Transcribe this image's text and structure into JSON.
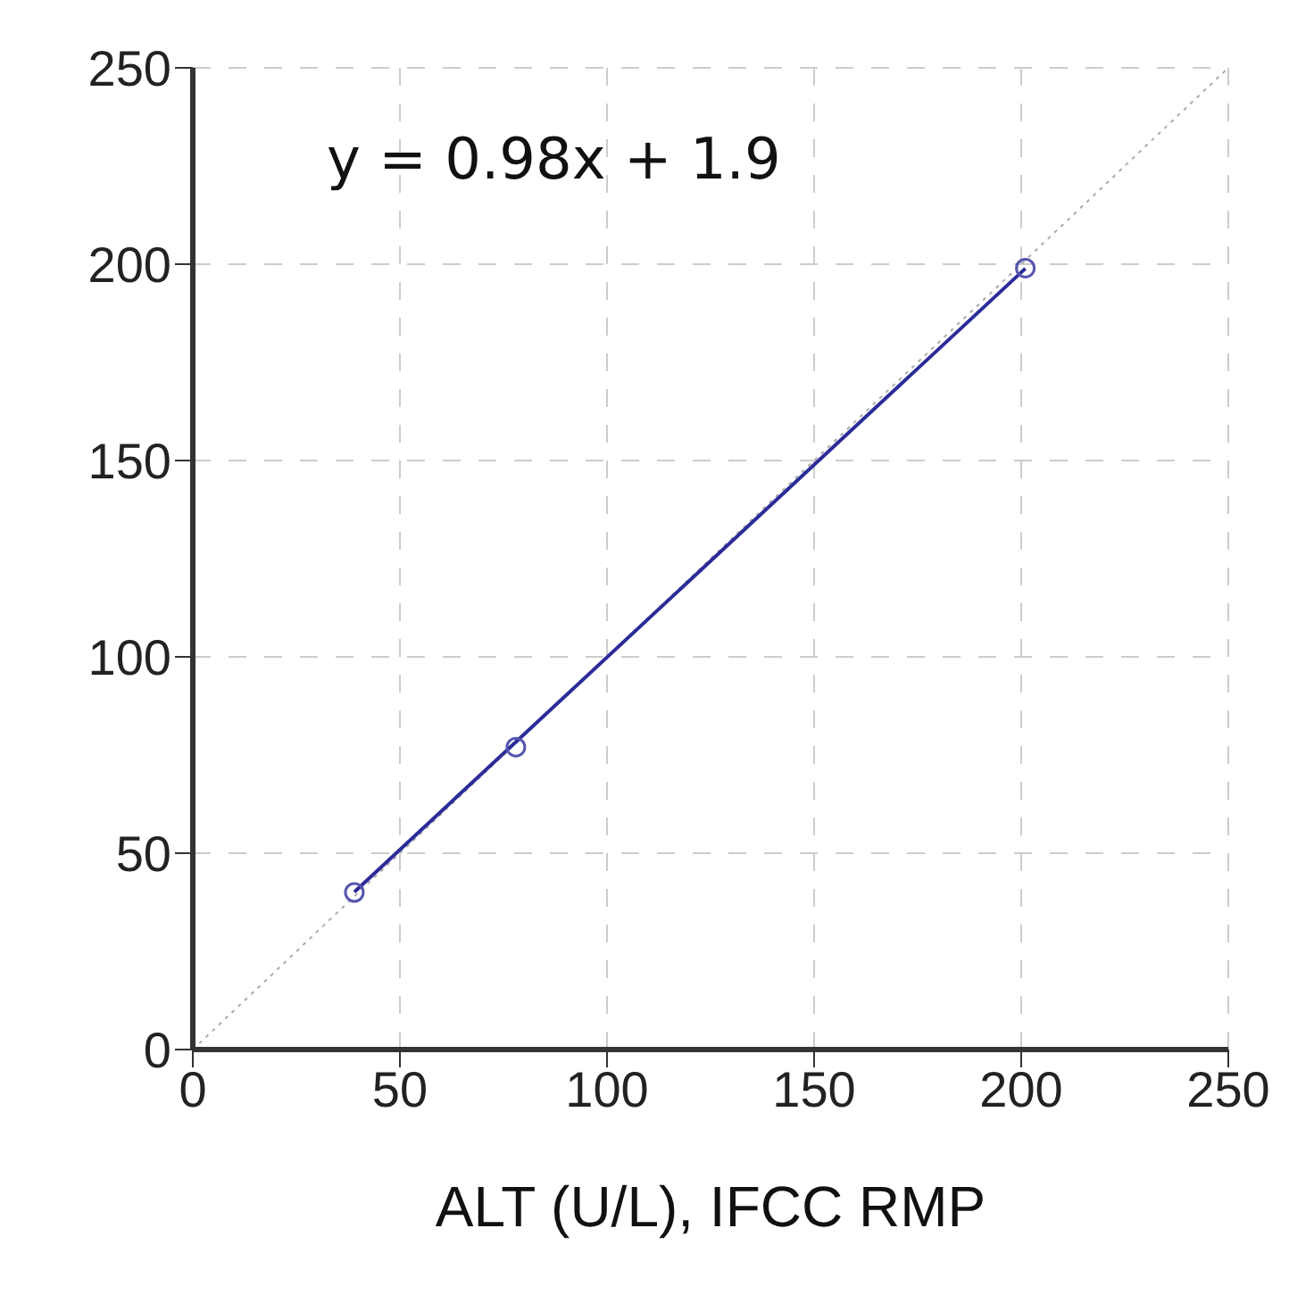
{
  "chart_data": {
    "type": "scatter",
    "xlabel": "ALT (U/L), IFCC RMP",
    "annotations": [
      "y = 0.98x + 1.9"
    ],
    "xlim": [
      0,
      250
    ],
    "ylim": [
      0,
      250
    ],
    "xticks": [
      0,
      50,
      100,
      150,
      200,
      250
    ],
    "yticks": [
      0,
      50,
      100,
      150,
      200,
      250
    ],
    "grid": true,
    "series": [
      {
        "type": "line",
        "color": "#aaaaaa",
        "line_style": "dotted",
        "marker": "none",
        "x": [
          0,
          250
        ],
        "values": [
          0,
          250
        ]
      },
      {
        "type": "line",
        "color": "#2b2b9a",
        "line_style": "solid",
        "marker": "none",
        "x": [
          39,
          201
        ],
        "values": [
          40.1,
          198.9
        ]
      },
      {
        "color": "#5555b0",
        "marker": "circle",
        "x": [
          39,
          78,
          201
        ],
        "values": [
          40,
          77,
          199
        ]
      }
    ]
  }
}
